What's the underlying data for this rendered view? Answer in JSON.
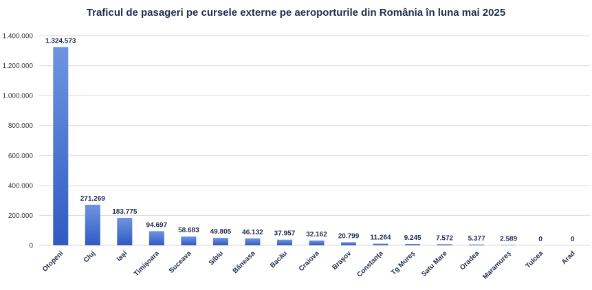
{
  "chart_data": {
    "type": "bar",
    "title": "Traficul de pasageri pe cursele externe pe aeroporturile din România în luna mai 2025",
    "xlabel": "",
    "ylabel": "",
    "ylim": [
      0,
      1400000
    ],
    "y_ticks": [
      0,
      200000,
      400000,
      600000,
      800000,
      1000000,
      1200000,
      1400000
    ],
    "y_tick_labels": [
      "0",
      "200.000",
      "400.000",
      "600.000",
      "800.000",
      "1.000.000",
      "1.200.000",
      "1.400.000"
    ],
    "grid": true,
    "legend": "none",
    "categories": [
      "Otopeni",
      "Cluj",
      "Iași",
      "Timișoara",
      "Suceava",
      "Sibiu",
      "Băneasa",
      "Bacău",
      "Craiova",
      "Brașov",
      "Constanța",
      "Tg Mureș",
      "Satu Mare",
      "Oradea",
      "Maramureș",
      "Tulcea",
      "Arad"
    ],
    "values": [
      1324573,
      271269,
      183775,
      94697,
      58683,
      49805,
      46132,
      37957,
      32162,
      20799,
      11264,
      9245,
      7572,
      5377,
      2589,
      0,
      0
    ],
    "data_labels": [
      "1.324.573",
      "271.269",
      "183.775",
      "94.697",
      "58.683",
      "49.805",
      "46.132",
      "37.957",
      "32.162",
      "20.799",
      "11.264",
      "9.245",
      "7.572",
      "5.377",
      "2.589",
      "0",
      "0"
    ],
    "colors": {
      "bar_top": "#6f95e0",
      "bar_bottom": "#2f5bc2",
      "grid": "#d9d9d9",
      "text": "#1f2d4d"
    }
  }
}
